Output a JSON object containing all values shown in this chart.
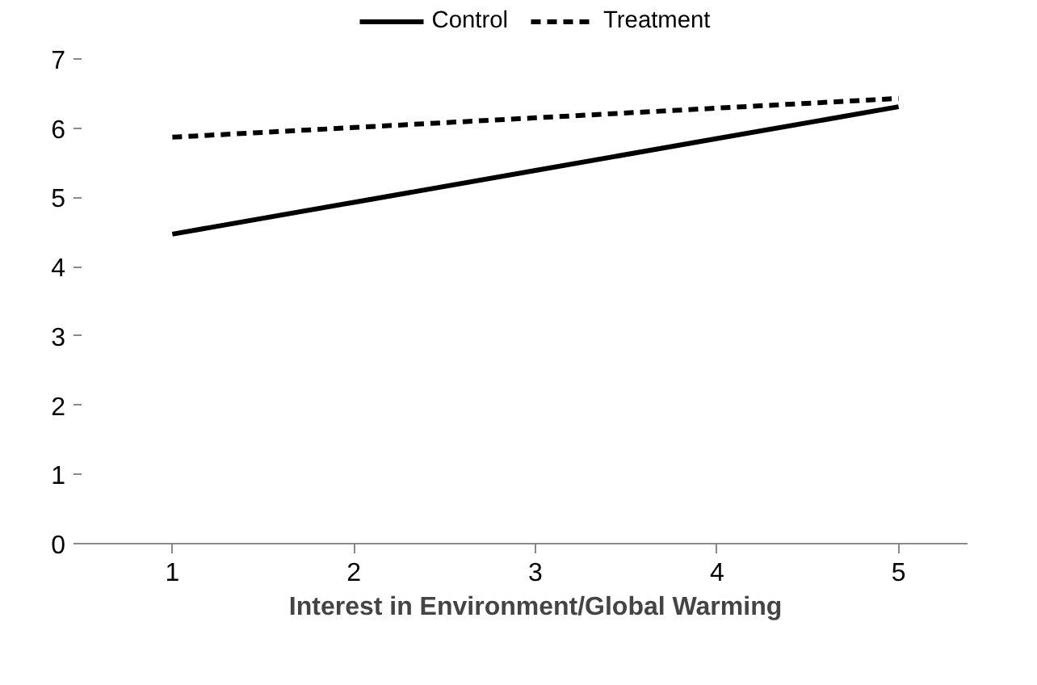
{
  "chart_data": {
    "type": "line",
    "xlabel": "Interest in Environment/Global Warming",
    "categories": [
      "1",
      "2",
      "3",
      "4",
      "5"
    ],
    "series": [
      {
        "name": "Control",
        "color": "#000000",
        "line_style": "solid",
        "values": [
          4.47,
          4.93,
          5.39,
          5.85,
          6.31
        ]
      },
      {
        "name": "Treatment",
        "color": "#000000",
        "line_style": "dashed",
        "values": [
          5.87,
          6.01,
          6.15,
          6.29,
          6.43
        ]
      }
    ],
    "ylim": [
      0,
      7
    ],
    "yticks": [
      0,
      1,
      2,
      3,
      4,
      5,
      6,
      7
    ],
    "grid": false,
    "legend": "top",
    "marker": "none"
  }
}
